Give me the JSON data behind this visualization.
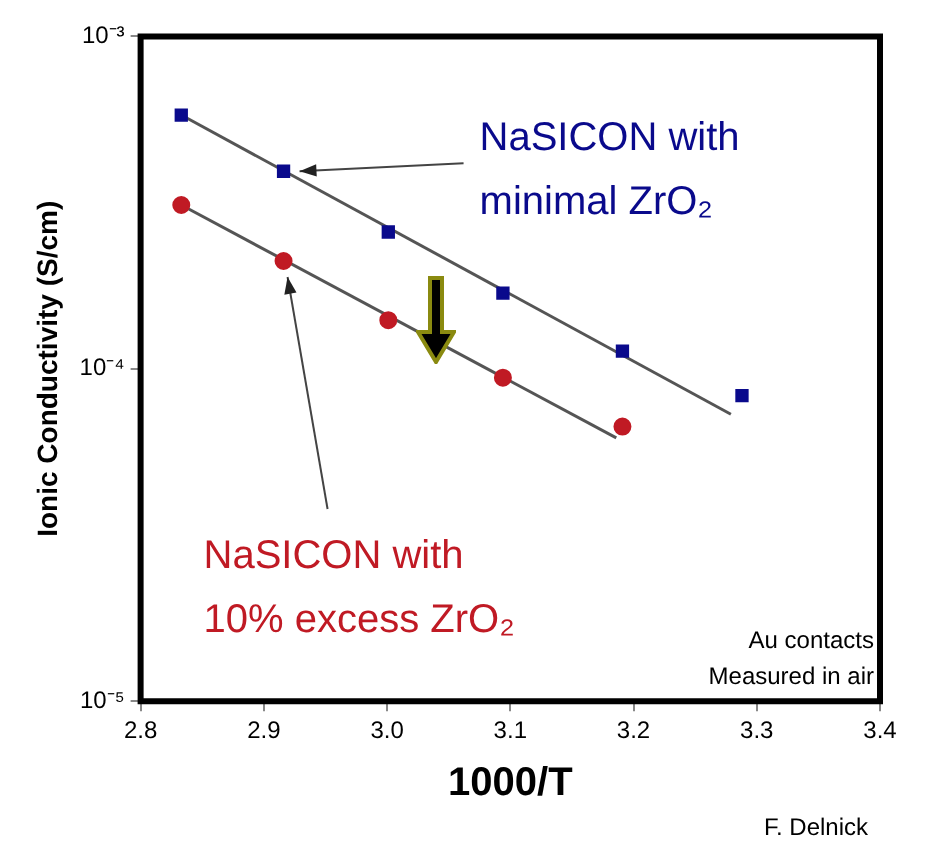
{
  "chart_data": {
    "type": "scatter",
    "xlabel": "1000/T",
    "ylabel": "Ionic Conductivity (S/cm)",
    "xlim": [
      2.8,
      3.4
    ],
    "xticks": [
      2.8,
      2.9,
      {
        "value": 3,
        "label": "3.0"
      },
      3.1,
      3.2,
      3.3,
      3.4
    ],
    "ylim": [
      1e-05,
      0.001
    ],
    "yticks": [
      {
        "value": 1e-05,
        "label": "10⁻⁵"
      },
      {
        "value": 0.0001,
        "label": "10⁻⁴"
      },
      {
        "value": 0.001,
        "label": "10⁻³"
      }
    ],
    "log": "y",
    "grid": false,
    "legend": false,
    "series": [
      {
        "type": "scatter",
        "marker": "square",
        "color": "#0a0a8c",
        "x": [
          2.833,
          2.916,
          3.001,
          3.094,
          3.191,
          3.288
        ],
        "values": [
          0.00058,
          0.000393,
          0.000258,
          0.000169,
          0.000113,
          8.3e-05
        ]
      },
      {
        "type": "scatter",
        "marker": "circle",
        "color": "#c01a24",
        "x": [
          2.833,
          2.916,
          3.001,
          3.094,
          3.191
        ],
        "values": [
          0.000311,
          0.000211,
          0.00014,
          9.4e-05,
          6.7e-05
        ]
      },
      {
        "type": "line",
        "marker": "none",
        "color": "#555555",
        "x": [
          2.833,
          3.279
        ],
        "values": [
          0.00058,
          7.3e-05
        ]
      },
      {
        "type": "line",
        "marker": "none",
        "color": "#555555",
        "x": [
          2.833,
          3.186
        ],
        "values": [
          0.000311,
          6.2e-05
        ]
      }
    ],
    "annotations": [
      {
        "text": "NaSICON with minimal ZrO₂",
        "x": 2.916,
        "y": 0.000393
      },
      {
        "text": "NaSICON with 10% excess ZrO₂",
        "x": 2.916,
        "y": 0.000211
      },
      "Au contacts",
      "Measured in air",
      "F. Delnick"
    ]
  }
}
